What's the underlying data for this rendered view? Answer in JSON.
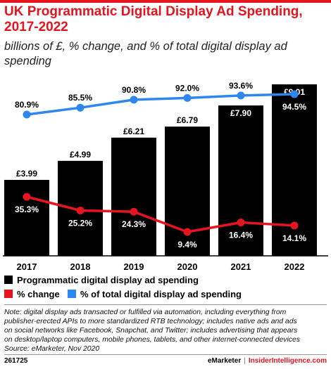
{
  "title_line1": "UK Programmatic Digital Display Ad Spending,",
  "title_line2": "2017-2022",
  "subtitle_line1": "billions of £, % change, and % of total digital display ad",
  "subtitle_line2": "spending",
  "colors": {
    "accent": "#e5141e",
    "bar": "#000000",
    "change_line": "#e5141e",
    "share_line": "#2e86f0"
  },
  "chart_data": {
    "type": "bar",
    "categories": [
      "2017",
      "2018",
      "2019",
      "2020",
      "2021",
      "2022"
    ],
    "series": [
      {
        "name": "Programmatic digital display ad spending",
        "type": "bar",
        "values": [
          3.99,
          4.99,
          6.21,
          6.79,
          7.9,
          9.01
        ],
        "labels": [
          "£3.99",
          "£4.99",
          "£6.21",
          "£6.79",
          "£7.90",
          "£9.01"
        ]
      },
      {
        "name": "% change",
        "type": "line",
        "values": [
          35.3,
          25.2,
          24.3,
          9.4,
          16.4,
          14.1
        ],
        "labels": [
          "35.3%",
          "25.2%",
          "24.3%",
          "9.4%",
          "16.4%",
          "14.1%"
        ]
      },
      {
        "name": "% of total digital display ad spending",
        "type": "line",
        "values": [
          80.9,
          85.5,
          90.8,
          92.0,
          93.6,
          94.5
        ],
        "labels": [
          "80.9%",
          "85.5%",
          "90.8%",
          "92.0%",
          "93.6%",
          "94.5%"
        ]
      }
    ],
    "ylim": [
      0,
      9.01
    ],
    "grid": false,
    "legend_position": "bottom"
  },
  "note_lines": [
    "Note: digital display ads transacted or fulfilled via automation, including everything from",
    "publisher-erected APIs to more standardized RTB technology; includes native ads and ads",
    "on social networks like Facebook, Snapchat, and Twitter; includes advertising that appears",
    "on desktop/laptop computers, mobile phones, tablets, and other internet-connected devices",
    "Source: eMarketer, Nov 2020"
  ],
  "footer": {
    "chart_id": "261725",
    "brand": "eMarketer",
    "separator": "|",
    "brand2": "InsiderIntelligence.com"
  }
}
